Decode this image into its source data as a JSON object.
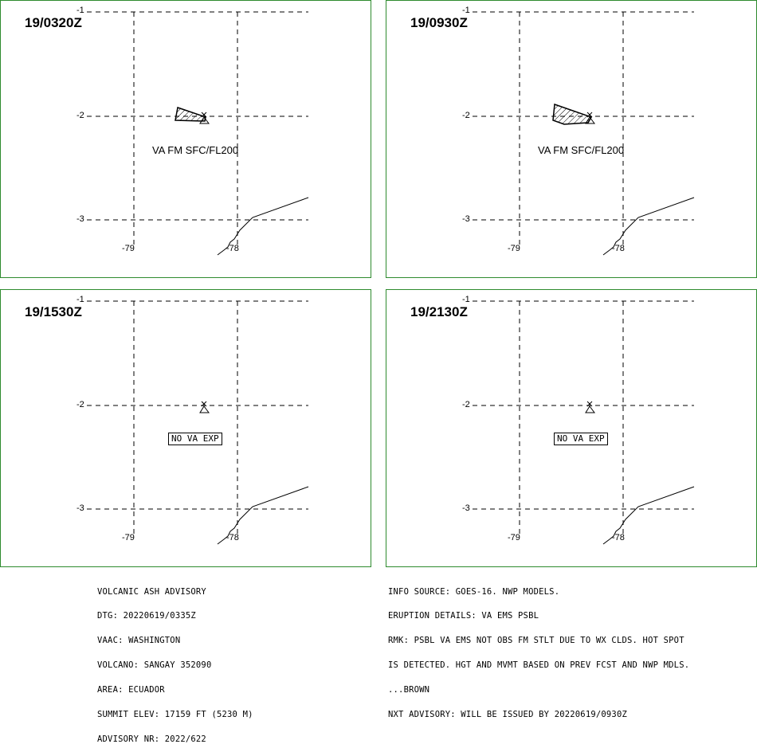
{
  "panels": [
    {
      "title": "19/0320Z",
      "label": "VA FM SFC/FL200",
      "type": "ash"
    },
    {
      "title": "19/0930Z",
      "label": "VA FM SFC/FL200",
      "type": "ash"
    },
    {
      "title": "19/1530Z",
      "label": "NO VA EXP",
      "type": "none"
    },
    {
      "title": "19/2130Z",
      "label": "NO VA EXP",
      "type": "none"
    }
  ],
  "grid": {
    "lat_labels": [
      "-1",
      "-2",
      "-3"
    ],
    "lon_labels": [
      "-79",
      "-78"
    ]
  },
  "colors": {
    "frame": "#2e8b2e",
    "lines": "#000000"
  },
  "left_text": [
    "VOLCANIC ASH ADVISORY",
    "DTG: 20220619/0335Z",
    "VAAC: WASHINGTON",
    "VOLCANO: SANGAY 352090",
    "AREA: ECUADOR",
    "SUMMIT ELEV: 17159 FT (5230 M)",
    "ADVISORY NR: 2022/622"
  ],
  "right_text": [
    "INFO SOURCE: GOES-16. NWP MODELS.",
    "ERUPTION DETAILS: VA EMS PSBL",
    "RMK: PSBL VA EMS NOT OBS FM STLT DUE TO WX CLDS. HOT SPOT",
    "IS DETECTED. HGT AND MVMT BASED ON PREV FCST AND NWP MDLS.",
    "...BROWN",
    "NXT ADVISORY: WILL BE ISSUED BY 20220619/0930Z"
  ]
}
